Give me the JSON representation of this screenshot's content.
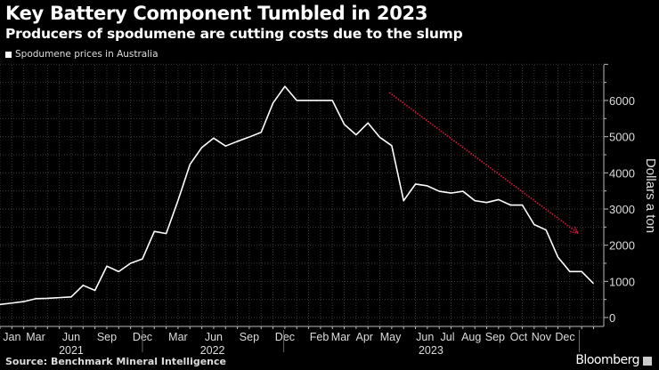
{
  "title": "Key Battery Component Tumbled in 2023",
  "subtitle": "Producers of spodumene are cutting costs due to the slump",
  "source": "Source: Benchmark Mineral Intelligence",
  "brand": "Bloomberg",
  "colors": {
    "background": "#000000",
    "line": "#ffffff",
    "arrow": "#e0143c",
    "grid": "#444444"
  },
  "chart_data": {
    "type": "line",
    "title": "Key Battery Component Tumbled in 2023",
    "subtitle": "Producers of spodumene are cutting costs due to the slump",
    "ylabel": "Dollars a ton",
    "xlabel": "",
    "ylim": [
      0,
      7000
    ],
    "yticks": [
      0,
      1000,
      2000,
      3000,
      4000,
      5000,
      6000
    ],
    "y_axis_side": "right",
    "grid": true,
    "legend_placement": "top-left",
    "x_ticks": [
      {
        "label": "Jan",
        "pos": 1
      },
      {
        "label": "Mar",
        "pos": 3
      },
      {
        "label": "Jun",
        "pos": 6
      },
      {
        "label": "Sep",
        "pos": 9
      },
      {
        "label": "Dec",
        "pos": 12
      },
      {
        "label": "Mar",
        "pos": 15
      },
      {
        "label": "Jun",
        "pos": 18
      },
      {
        "label": "Sep",
        "pos": 21
      },
      {
        "label": "Dec",
        "pos": 24
      },
      {
        "label": "Feb",
        "pos": 26.9
      },
      {
        "label": "Mar",
        "pos": 28.7
      },
      {
        "label": "Apr",
        "pos": 30.7
      },
      {
        "label": "May",
        "pos": 32.9
      },
      {
        "label": "Jun",
        "pos": 35.8
      },
      {
        "label": "Jul",
        "pos": 37.7
      },
      {
        "label": "Aug",
        "pos": 39.7
      },
      {
        "label": "Sep",
        "pos": 41.7
      },
      {
        "label": "Oct",
        "pos": 43.7
      },
      {
        "label": "Nov",
        "pos": 45.6
      },
      {
        "label": "Dec",
        "pos": 47.6
      }
    ],
    "years": [
      {
        "label": "2021",
        "pos": 6,
        "end": 12
      },
      {
        "label": "2022",
        "pos": 17.9,
        "end": 23.9
      },
      {
        "label": "2023",
        "pos": 36.3,
        "end": 48.8
      }
    ],
    "series": [
      {
        "name": "Spodumene prices in Australia",
        "values": [
          360,
          400,
          440,
          520,
          530,
          550,
          570,
          890,
          750,
          1420,
          1270,
          1500,
          1620,
          2380,
          2320,
          3240,
          4230,
          4700,
          4960,
          4740,
          4870,
          4990,
          5120,
          5930,
          6390,
          6000,
          6000,
          6000,
          6000,
          5340,
          5050,
          5380,
          4980,
          4750,
          3230,
          3690,
          3640,
          3490,
          3440,
          3490,
          3230,
          3180,
          3260,
          3110,
          3110,
          2570,
          2420,
          1670,
          1270,
          1270,
          940
        ]
      }
    ],
    "annotations": [
      {
        "type": "arrow",
        "from": [
          32.8,
          6220
        ],
        "to": [
          48.7,
          2330
        ],
        "color": "#e0143c",
        "style": "dotted"
      }
    ]
  }
}
